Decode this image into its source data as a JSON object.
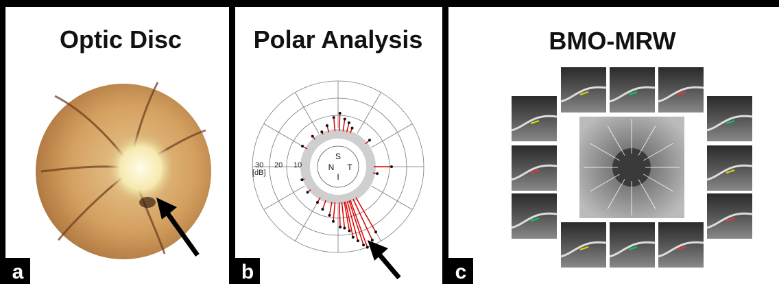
{
  "panels": [
    {
      "title": "Optic Disc",
      "label": "a"
    },
    {
      "title": "Polar Analysis",
      "label": "b",
      "ring_labels": [
        "30",
        "20",
        "10"
      ],
      "unit": "[dB]",
      "sectors": [
        "S",
        "N",
        "T",
        "I"
      ]
    },
    {
      "title": "BMO-MRW",
      "label": "c"
    }
  ]
}
